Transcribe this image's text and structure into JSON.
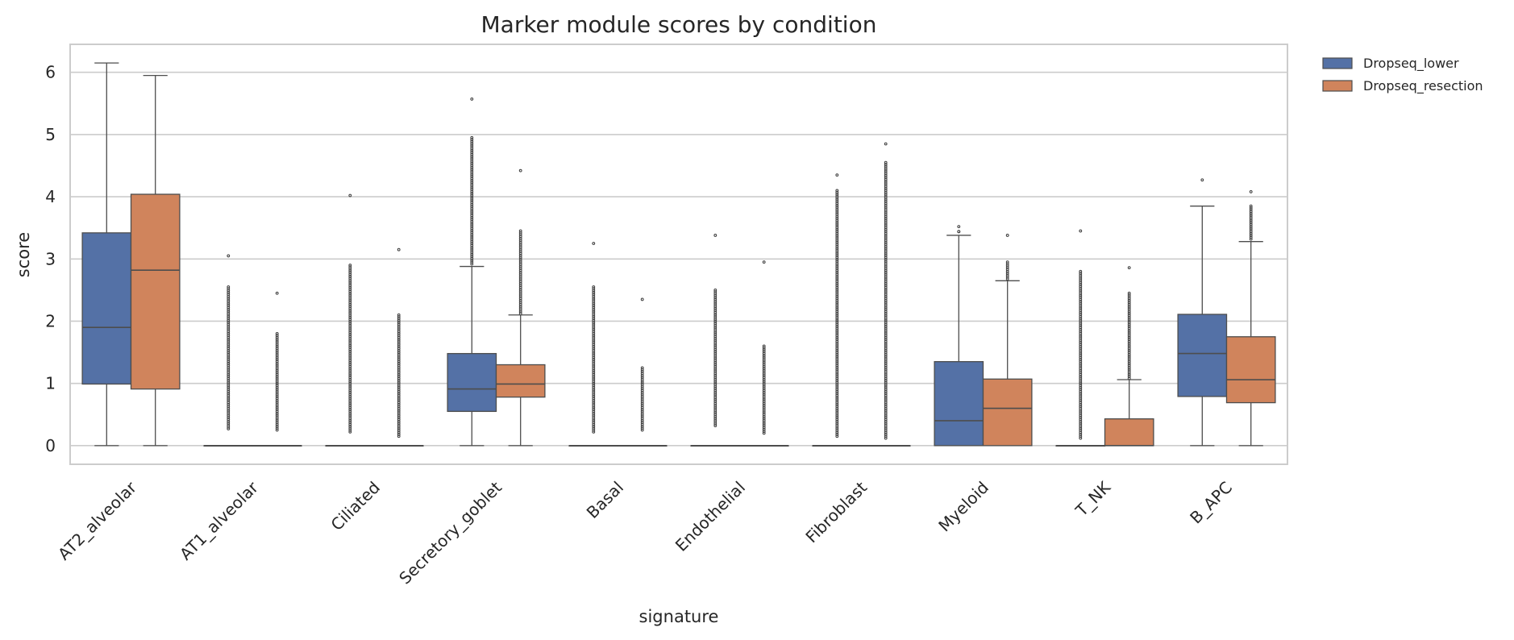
{
  "chart_data": {
    "type": "box",
    "title": "Marker module scores by condition",
    "xlabel": "signature",
    "ylabel": "score",
    "ylim": [
      -0.3,
      6.45
    ],
    "yticks": [
      0,
      1,
      2,
      3,
      4,
      5,
      6
    ],
    "grid": "horizontal",
    "legend_position": "top-right outside",
    "categories": [
      "AT2_alveolar",
      "AT1_alveolar",
      "Ciliated",
      "Secretory_goblet",
      "Basal",
      "Endothelial",
      "Fibroblast",
      "Myeloid",
      "T_NK",
      "B_APC"
    ],
    "series": [
      {
        "name": "Dropseq_lower",
        "color": "#5471a6",
        "boxes": [
          {
            "q1": 0.99,
            "median": 1.9,
            "q3": 3.42,
            "whislo": 0.0,
            "whishi": 6.15,
            "outlier_range": null,
            "outlier_max": null
          },
          {
            "q1": 0.0,
            "median": 0.0,
            "q3": 0.0,
            "whislo": 0.0,
            "whishi": 0.0,
            "outlier_range": [
              0.27,
              2.55
            ],
            "outlier_max": 3.05
          },
          {
            "q1": 0.0,
            "median": 0.0,
            "q3": 0.0,
            "whislo": 0.0,
            "whishi": 0.0,
            "outlier_range": [
              0.22,
              2.9
            ],
            "outlier_max": 4.02
          },
          {
            "q1": 0.55,
            "median": 0.91,
            "q3": 1.48,
            "whislo": 0.0,
            "whishi": 2.88,
            "outlier_range": [
              2.92,
              4.95
            ],
            "outlier_max": 5.57
          },
          {
            "q1": 0.0,
            "median": 0.0,
            "q3": 0.0,
            "whislo": 0.0,
            "whishi": 0.0,
            "outlier_range": [
              0.22,
              2.55
            ],
            "outlier_max": 3.25
          },
          {
            "q1": 0.0,
            "median": 0.0,
            "q3": 0.0,
            "whislo": 0.0,
            "whishi": 0.0,
            "outlier_range": [
              0.32,
              2.5
            ],
            "outlier_max": 3.38
          },
          {
            "q1": 0.0,
            "median": 0.0,
            "q3": 0.0,
            "whislo": 0.0,
            "whishi": 0.0,
            "outlier_range": [
              0.15,
              4.1
            ],
            "outlier_max": 4.35
          },
          {
            "q1": 0.0,
            "median": 0.4,
            "q3": 1.35,
            "whislo": 0.0,
            "whishi": 3.38,
            "outlier_range": [
              3.44,
              3.44
            ],
            "outlier_max": 3.52
          },
          {
            "q1": 0.0,
            "median": 0.0,
            "q3": 0.0,
            "whislo": 0.0,
            "whishi": 0.0,
            "outlier_range": [
              0.12,
              2.8
            ],
            "outlier_max": 3.45
          },
          {
            "q1": 0.79,
            "median": 1.48,
            "q3": 2.11,
            "whislo": 0.0,
            "whishi": 3.85,
            "outlier_range": null,
            "outlier_max": 4.27
          }
        ]
      },
      {
        "name": "Dropseq_resection",
        "color": "#d0845c",
        "boxes": [
          {
            "q1": 0.91,
            "median": 2.82,
            "q3": 4.04,
            "whislo": 0.0,
            "whishi": 5.95,
            "outlier_range": null,
            "outlier_max": null
          },
          {
            "q1": 0.0,
            "median": 0.0,
            "q3": 0.0,
            "whislo": 0.0,
            "whishi": 0.0,
            "outlier_range": [
              0.25,
              1.8
            ],
            "outlier_max": 2.45
          },
          {
            "q1": 0.0,
            "median": 0.0,
            "q3": 0.0,
            "whislo": 0.0,
            "whishi": 0.0,
            "outlier_range": [
              0.15,
              2.1
            ],
            "outlier_max": 3.15
          },
          {
            "q1": 0.78,
            "median": 0.99,
            "q3": 1.3,
            "whislo": 0.0,
            "whishi": 2.1,
            "outlier_range": [
              2.12,
              3.45
            ],
            "outlier_max": 4.42
          },
          {
            "q1": 0.0,
            "median": 0.0,
            "q3": 0.0,
            "whislo": 0.0,
            "whishi": 0.0,
            "outlier_range": [
              0.25,
              1.25
            ],
            "outlier_max": 2.35
          },
          {
            "q1": 0.0,
            "median": 0.0,
            "q3": 0.0,
            "whislo": 0.0,
            "whishi": 0.0,
            "outlier_range": [
              0.2,
              1.6
            ],
            "outlier_max": 2.95
          },
          {
            "q1": 0.0,
            "median": 0.0,
            "q3": 0.0,
            "whislo": 0.0,
            "whishi": 0.0,
            "outlier_range": [
              0.12,
              4.55
            ],
            "outlier_max": 4.85
          },
          {
            "q1": 0.0,
            "median": 0.6,
            "q3": 1.07,
            "whislo": 0.0,
            "whishi": 2.65,
            "outlier_range": [
              2.68,
              2.95
            ],
            "outlier_max": 3.38
          },
          {
            "q1": 0.0,
            "median": 0.0,
            "q3": 0.43,
            "whislo": 0.0,
            "whishi": 1.06,
            "outlier_range": [
              1.08,
              2.45
            ],
            "outlier_max": 2.86
          },
          {
            "q1": 0.69,
            "median": 1.06,
            "q3": 1.75,
            "whislo": 0.0,
            "whishi": 3.28,
            "outlier_range": [
              3.32,
              3.85
            ],
            "outlier_max": 4.08
          }
        ]
      }
    ]
  }
}
